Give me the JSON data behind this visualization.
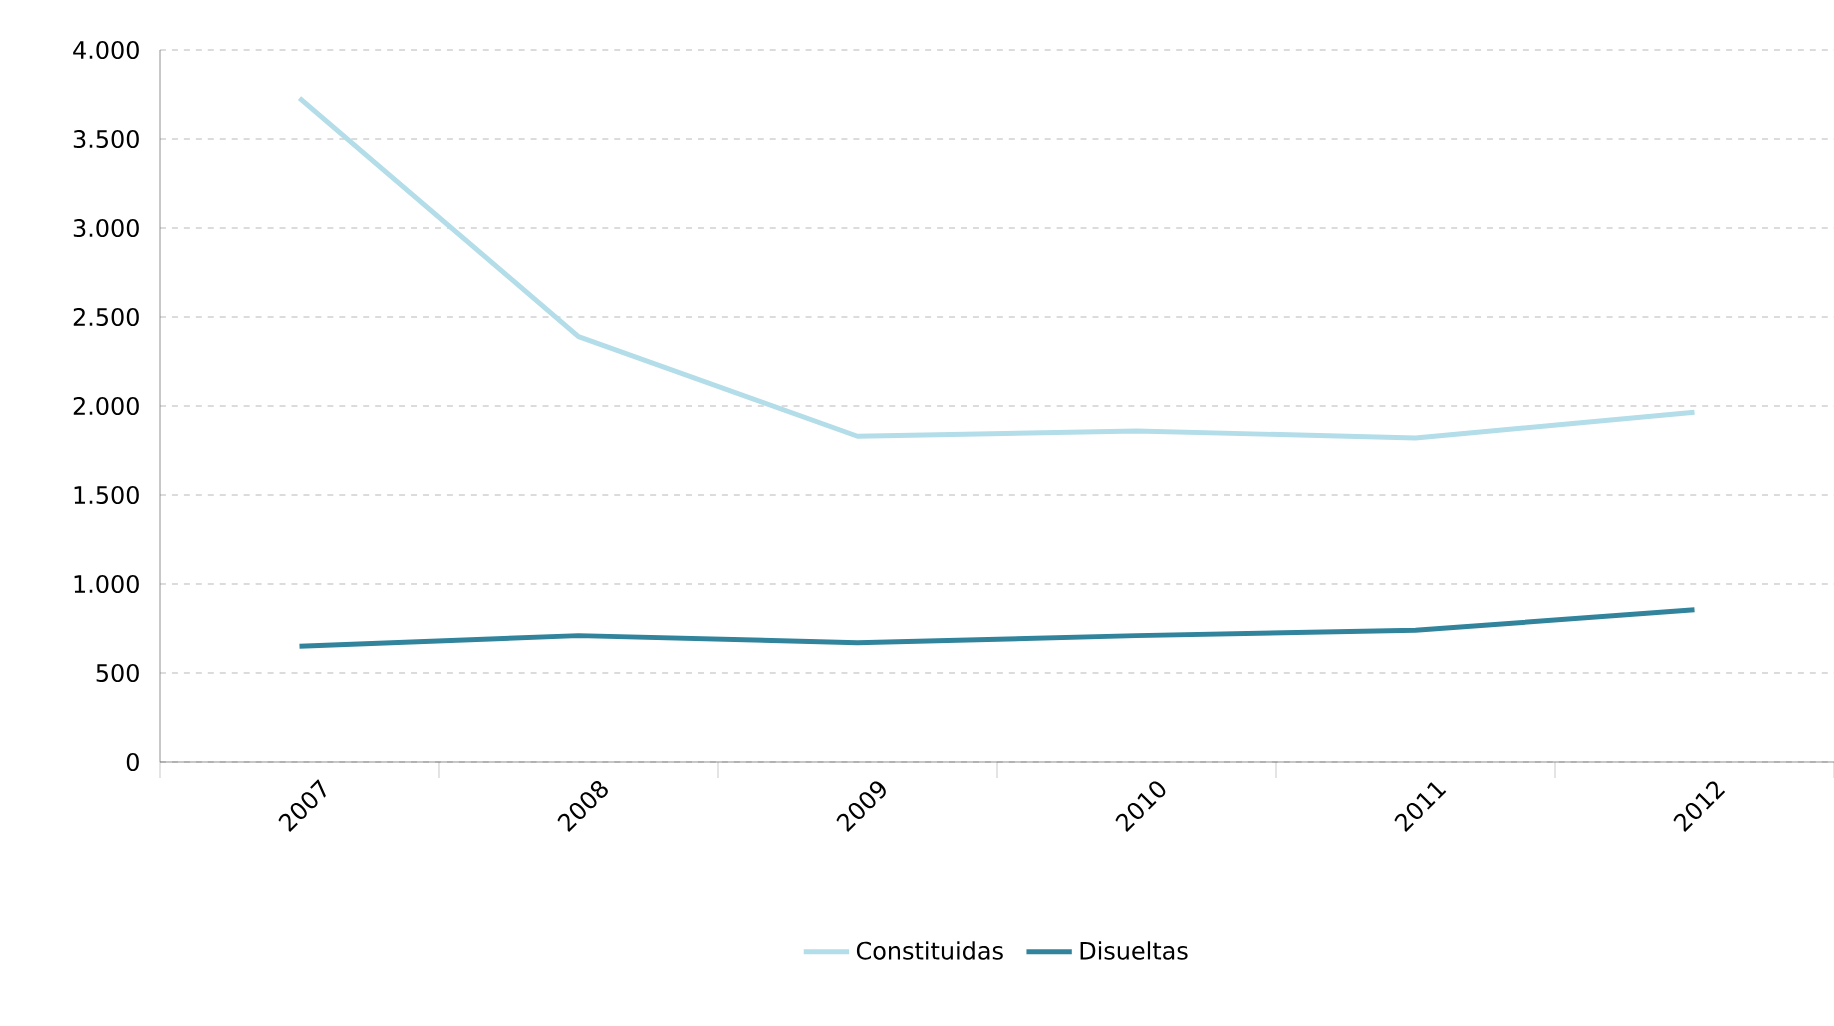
{
  "chart_data": {
    "type": "line",
    "categories": [
      "2007",
      "2008",
      "2009",
      "2010",
      "2011",
      "2012"
    ],
    "series": [
      {
        "name": "Constituidas",
        "color": "#b3dde8",
        "values": [
          3730,
          2390,
          1830,
          1860,
          1820,
          1965
        ]
      },
      {
        "name": "Disueltas",
        "color": "#31849b",
        "values": [
          650,
          710,
          670,
          710,
          740,
          855
        ]
      }
    ],
    "ylim": [
      0,
      4000
    ],
    "yticks": [
      0,
      {
        "value": 500,
        "label": "500"
      },
      {
        "value": 1000,
        "label": "1.000"
      },
      {
        "value": 1500,
        "label": "1.500"
      },
      {
        "value": 2000,
        "label": "2.000"
      },
      {
        "value": 2500,
        "label": "2.500"
      },
      {
        "value": 3000,
        "label": "3.000"
      },
      {
        "value": 3500,
        "label": "3.500"
      },
      {
        "value": 4000,
        "label": "4.000"
      }
    ],
    "grid": "y",
    "legend": "bottom",
    "marker": "none",
    "line_style": "solid"
  }
}
